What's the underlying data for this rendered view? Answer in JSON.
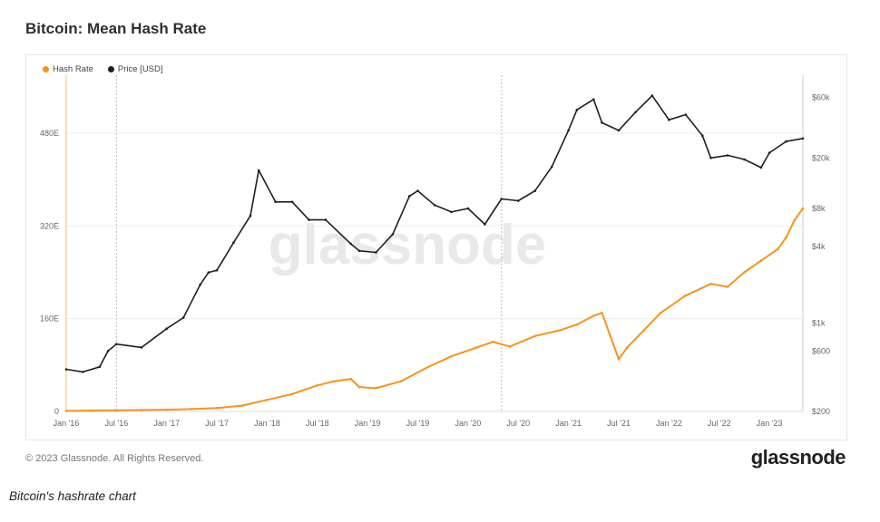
{
  "page": {
    "title": "Bitcoin: Mean Hash Rate",
    "footer_copyright": "© 2023 Glassnode. All Rights Reserved.",
    "footer_logo": "glassnode",
    "watermark": "glassnode",
    "caption": "Bitcoin's hashrate chart"
  },
  "colors": {
    "hash_rate": "#f7931a",
    "price": "#1f1f1f",
    "grid": "#eeeeee",
    "axis_text": "#666666"
  },
  "chart_data": {
    "type": "line",
    "title": "Bitcoin: Mean Hash Rate",
    "legend_position": "top-left",
    "grid": true,
    "x_tick_labels": [
      "Jan '16",
      "Jul '16",
      "Jan '17",
      "Jul '17",
      "Jan '18",
      "Jul '18",
      "Jan '19",
      "Jul '19",
      "Jan '20",
      "Jul '20",
      "Jan '21",
      "Jul '21",
      "Jan '22",
      "Jul '22",
      "Jan '23"
    ],
    "x_ticks": [
      "2016-01",
      "2016-07",
      "2017-01",
      "2017-07",
      "2018-01",
      "2018-07",
      "2019-01",
      "2019-07",
      "2020-01",
      "2020-07",
      "2021-01",
      "2021-07",
      "2022-01",
      "2022-07",
      "2023-01"
    ],
    "xlim": [
      "2016-01",
      "2023-05"
    ],
    "vertical_markers": [
      "2016-07",
      "2020-05"
    ],
    "y_left": {
      "label": "",
      "ticks": [
        0,
        160,
        320,
        480
      ],
      "tick_labels": [
        "0",
        "160E",
        "320E",
        "480E"
      ],
      "lim": [
        0,
        580
      ],
      "unit": "EH/s"
    },
    "y_right": {
      "label": "",
      "scale": "log",
      "ticks": [
        200,
        600,
        1000,
        4000,
        8000,
        20000,
        60000
      ],
      "tick_labels": [
        "$200",
        "$600",
        "$1k",
        "$4k",
        "$8k",
        "$20k",
        "$60k"
      ],
      "lim": [
        200,
        90000
      ]
    },
    "series": [
      {
        "name": "Hash Rate",
        "axis": "left",
        "color": "#f7931a",
        "x": [
          "2016-01",
          "2016-04",
          "2016-07",
          "2016-10",
          "2017-01",
          "2017-04",
          "2017-07",
          "2017-10",
          "2018-01",
          "2018-04",
          "2018-07",
          "2018-09",
          "2018-11",
          "2018-12",
          "2019-02",
          "2019-05",
          "2019-08",
          "2019-11",
          "2020-02",
          "2020-04",
          "2020-06",
          "2020-09",
          "2020-12",
          "2021-02",
          "2021-04",
          "2021-05",
          "2021-06",
          "2021-07",
          "2021-08",
          "2021-10",
          "2021-12",
          "2022-03",
          "2022-06",
          "2022-08",
          "2022-10",
          "2022-12",
          "2023-02",
          "2023-03",
          "2023-04",
          "2023-05"
        ],
        "values": [
          1,
          1.5,
          2,
          2.5,
          3,
          4,
          6,
          10,
          20,
          30,
          45,
          52,
          56,
          42,
          40,
          52,
          75,
          95,
          110,
          120,
          112,
          130,
          140,
          150,
          165,
          170,
          130,
          90,
          110,
          140,
          170,
          200,
          220,
          215,
          240,
          260,
          280,
          300,
          330,
          350
        ]
      },
      {
        "name": "Price [USD]",
        "axis": "right",
        "color": "#1f1f1f",
        "x": [
          "2016-01",
          "2016-03",
          "2016-05",
          "2016-06",
          "2016-07",
          "2016-10",
          "2017-01",
          "2017-03",
          "2017-05",
          "2017-06",
          "2017-07",
          "2017-09",
          "2017-11",
          "2017-12",
          "2018-02",
          "2018-04",
          "2018-06",
          "2018-08",
          "2018-11",
          "2018-12",
          "2019-02",
          "2019-04",
          "2019-06",
          "2019-07",
          "2019-09",
          "2019-11",
          "2020-01",
          "2020-03",
          "2020-05",
          "2020-07",
          "2020-09",
          "2020-11",
          "2021-01",
          "2021-02",
          "2021-04",
          "2021-05",
          "2021-07",
          "2021-09",
          "2021-11",
          "2022-01",
          "2022-03",
          "2022-05",
          "2022-06",
          "2022-08",
          "2022-10",
          "2022-12",
          "2023-01",
          "2023-03",
          "2023-05"
        ],
        "values": [
          430,
          410,
          450,
          600,
          680,
          640,
          900,
          1100,
          2000,
          2500,
          2600,
          4300,
          7000,
          16000,
          9000,
          9000,
          6500,
          6500,
          4200,
          3700,
          3600,
          5000,
          10000,
          11000,
          8500,
          7500,
          8000,
          6000,
          9500,
          9200,
          11000,
          17000,
          33000,
          48000,
          58000,
          38000,
          33000,
          46000,
          62000,
          40000,
          44000,
          30000,
          20000,
          21000,
          19500,
          16800,
          22000,
          27000,
          28500
        ]
      }
    ]
  }
}
